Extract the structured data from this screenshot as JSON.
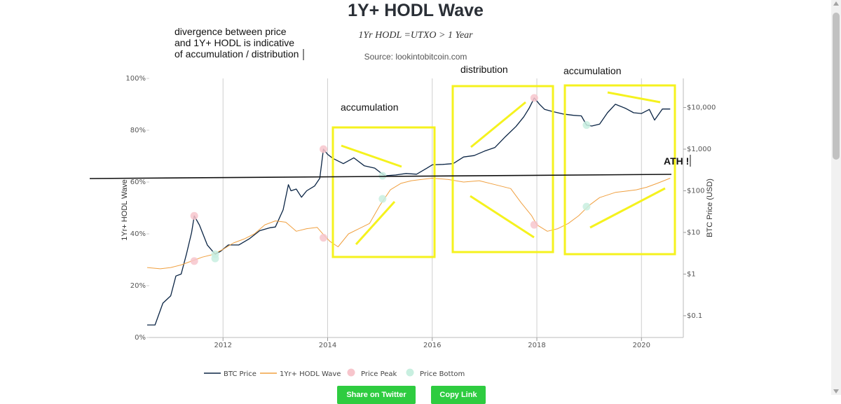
{
  "chart_data": {
    "type": "line",
    "title": "1Y+ HODL Wave",
    "subtitle": "1Yr HODL =UTXO > 1 Year",
    "source": "Source: lookintobitcoin.com",
    "xlabel": "",
    "ylabel_left": "1Yr+ HODL Wave",
    "ylabel_right": "BTC Price (USD)",
    "xlim": [
      2010.55,
      2020.8
    ],
    "ylim_left": [
      0,
      100
    ],
    "ylim_right_log": [
      0.03,
      50000
    ],
    "y_right_scale": "log",
    "x_ticks": [
      "2012",
      "2014",
      "2016",
      "2018",
      "2020"
    ],
    "x_tick_values": [
      2012,
      2014,
      2016,
      2018,
      2020
    ],
    "y_left_ticks": [
      "0%",
      "20%",
      "40%",
      "60%",
      "80%",
      "100%"
    ],
    "y_left_tick_values": [
      0,
      20,
      40,
      60,
      80,
      100
    ],
    "y_right_ticks": [
      "$0.1",
      "$1",
      "$10",
      "$100",
      "$1,000",
      "$10,000"
    ],
    "y_right_tick_values": [
      0.1,
      1,
      10,
      100,
      1000,
      10000
    ],
    "grid": "vertical",
    "legend_position": "bottom",
    "series": [
      {
        "name": "BTC Price",
        "color": "#0b2545",
        "axis": "right",
        "x": [
          2010.55,
          2010.7,
          2010.85,
          2011.0,
          2011.1,
          2011.2,
          2011.3,
          2011.4,
          2011.45,
          2011.55,
          2011.7,
          2011.85,
          2011.95,
          2012.1,
          2012.3,
          2012.5,
          2012.7,
          2012.9,
          2013.0,
          2013.15,
          2013.25,
          2013.3,
          2013.4,
          2013.5,
          2013.6,
          2013.75,
          2013.85,
          2013.92,
          2014.0,
          2014.1,
          2014.3,
          2014.5,
          2014.7,
          2014.9,
          2015.0,
          2015.1,
          2015.3,
          2015.5,
          2015.7,
          2015.9,
          2016.0,
          2016.2,
          2016.4,
          2016.6,
          2016.8,
          2017.0,
          2017.2,
          2017.4,
          2017.6,
          2017.75,
          2017.85,
          2017.95,
          2018.05,
          2018.15,
          2018.3,
          2018.5,
          2018.7,
          2018.85,
          2018.95,
          2019.05,
          2019.2,
          2019.35,
          2019.5,
          2019.7,
          2019.85,
          2020.0,
          2020.15,
          2020.25,
          2020.4,
          2020.55
        ],
        "y": [
          0.06,
          0.06,
          0.2,
          0.3,
          0.9,
          1.0,
          3.0,
          10.0,
          25.0,
          15.0,
          5.0,
          3.0,
          3.5,
          5.0,
          5.0,
          7.0,
          11.0,
          13.0,
          13.5,
          35.0,
          140.0,
          100.0,
          110.0,
          70.0,
          100.0,
          130.0,
          200.0,
          1000.0,
          750.0,
          600.0,
          450.0,
          620.0,
          400.0,
          350.0,
          280.0,
          230.0,
          240.0,
          260.0,
          250.0,
          350.0,
          420.0,
          430.0,
          450.0,
          650.0,
          700.0,
          900.0,
          1100.0,
          2000.0,
          3500.0,
          6000.0,
          9500.0,
          17000.0,
          12000.0,
          9000.0,
          8000.0,
          7000.0,
          6500.0,
          6300.0,
          3800.0,
          3600.0,
          4000.0,
          7500.0,
          12000.0,
          9500.0,
          7500.0,
          7200.0,
          9000.0,
          5000.0,
          9200.0,
          9200.0
        ]
      },
      {
        "name": "1Yr+ HODL Wave",
        "color": "#f0a040",
        "axis": "left",
        "x": [
          2010.55,
          2010.8,
          2011.0,
          2011.2,
          2011.4,
          2011.6,
          2011.8,
          2012.0,
          2012.2,
          2012.4,
          2012.6,
          2012.8,
          2013.0,
          2013.2,
          2013.4,
          2013.6,
          2013.8,
          2013.95,
          2014.05,
          2014.2,
          2014.4,
          2014.6,
          2014.8,
          2015.0,
          2015.2,
          2015.4,
          2015.6,
          2015.8,
          2016.0,
          2016.3,
          2016.6,
          2016.9,
          2017.2,
          2017.5,
          2017.7,
          2017.9,
          2018.0,
          2018.2,
          2018.4,
          2018.6,
          2018.8,
          2019.0,
          2019.2,
          2019.5,
          2019.7,
          2019.9,
          2020.1,
          2020.3,
          2020.55
        ],
        "y": [
          27.0,
          26.5,
          27.0,
          28.0,
          29.5,
          31.0,
          32.0,
          34.0,
          36.5,
          38.0,
          40.0,
          43.5,
          45.0,
          44.5,
          41.0,
          42.0,
          42.5,
          39.0,
          37.0,
          35.0,
          40.0,
          42.0,
          44.0,
          51.0,
          57.0,
          59.5,
          60.5,
          61.0,
          61.5,
          61.0,
          60.0,
          60.5,
          59.0,
          57.5,
          52.0,
          47.0,
          43.5,
          41.0,
          42.0,
          44.0,
          47.0,
          51.0,
          54.0,
          56.0,
          56.5,
          57.0,
          58.0,
          59.5,
          61.5
        ]
      }
    ],
    "peaks": [
      {
        "x": 2011.45,
        "hodl": 29.5,
        "price": 25.0
      },
      {
        "x": 2013.92,
        "hodl": 38.5,
        "price": 1000.0
      },
      {
        "x": 2017.95,
        "hodl": 43.5,
        "price": 17000.0
      }
    ],
    "bottoms": [
      {
        "x": 2011.85,
        "hodl": 30.5,
        "price": 3.0
      },
      {
        "x": 2015.05,
        "hodl": 53.5,
        "price": 230.0
      },
      {
        "x": 2018.95,
        "hodl": 50.5,
        "price": 3800.0
      }
    ],
    "legend": [
      {
        "label": "BTC Price",
        "kind": "line",
        "color": "#0b2545"
      },
      {
        "label": "1Yr+ HODL Wave",
        "kind": "line",
        "color": "#f0a040"
      },
      {
        "label": "Price Peak",
        "kind": "dot",
        "color": "#f7c5cc"
      },
      {
        "label": "Price Bottom",
        "kind": "dot",
        "color": "#c8efe0"
      }
    ],
    "annotations": {
      "note": [
        "divergence between price",
        "and 1Y+ HODL is indicative",
        "of accumulation / distribution"
      ],
      "labels": [
        "accumulation",
        "distribution",
        "accumulation"
      ],
      "ath": "ATH !",
      "highlight_color": "#f5f21e"
    }
  },
  "buttons": {
    "twitter": "Share on Twitter",
    "copy": "Copy Link"
  }
}
